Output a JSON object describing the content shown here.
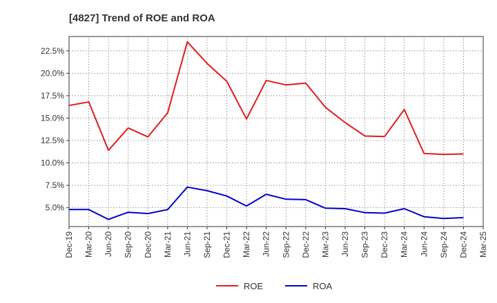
{
  "chart_data": {
    "type": "line",
    "title": "[4827]  Trend of ROE and ROA",
    "xlabel": "",
    "ylabel": "",
    "categories": [
      "Dec-19",
      "Mar-20",
      "Jun-20",
      "Sep-20",
      "Dec-20",
      "Mar-21",
      "Jun-21",
      "Sep-21",
      "Dec-21",
      "Mar-22",
      "Jun-22",
      "Sep-22",
      "Dec-22",
      "Mar-23",
      "Jun-23",
      "Sep-23",
      "Dec-23",
      "Mar-24",
      "Jun-24",
      "Sep-24",
      "Dec-24",
      "Mar-25"
    ],
    "y_ticks": [
      "5.0%",
      "7.5%",
      "10.0%",
      "12.5%",
      "15.0%",
      "17.5%",
      "20.0%",
      "22.5%"
    ],
    "ylim": [
      2.9,
      24.1
    ],
    "grid": true,
    "legend_position": "bottom-center",
    "series": [
      {
        "name": "ROE",
        "color": "#e31a1c",
        "values": [
          16.4,
          16.8,
          11.4,
          13.9,
          12.9,
          15.6,
          23.5,
          21.1,
          19.1,
          14.9,
          19.2,
          18.7,
          18.9,
          16.2,
          14.5,
          13.0,
          12.95,
          15.95,
          11.05,
          10.95,
          11.0,
          null
        ]
      },
      {
        "name": "ROA",
        "color": "#0000cc",
        "values": [
          4.8,
          4.8,
          3.7,
          4.5,
          4.35,
          4.8,
          7.3,
          6.9,
          6.3,
          5.2,
          6.5,
          5.95,
          5.9,
          4.95,
          4.9,
          4.45,
          4.4,
          4.9,
          4.0,
          3.8,
          3.9,
          null
        ]
      }
    ]
  }
}
